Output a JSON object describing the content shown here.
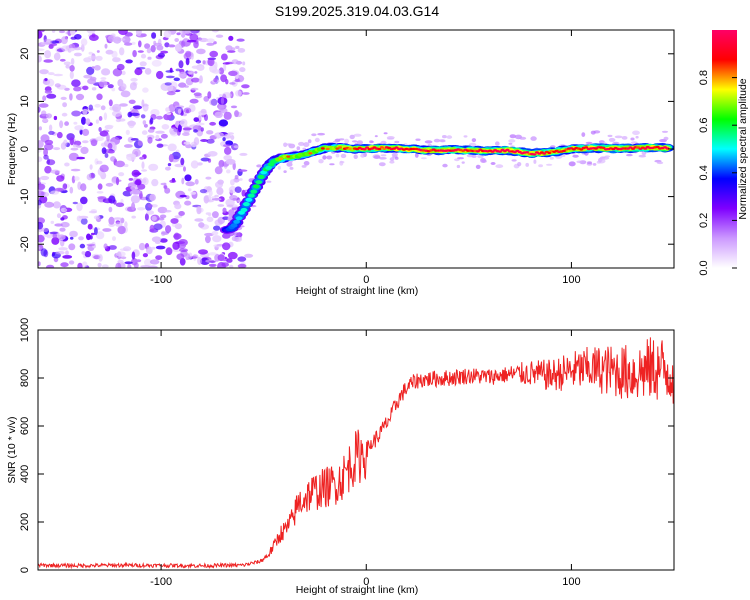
{
  "title": "S199.2025.319.04.03.G14",
  "chart_data": [
    {
      "type": "heatmap",
      "xlabel": "Height of straight line (km)",
      "ylabel": "Frequency (Hz)",
      "xlim": [
        -160,
        150
      ],
      "ylim": [
        -25,
        25
      ],
      "x_ticks": [
        "-100",
        "0",
        "100"
      ],
      "y_ticks": [
        "-20",
        "-10",
        "0",
        "10",
        "20"
      ],
      "noise_region_x": [
        -160,
        -60
      ],
      "ridge": {
        "x": [
          -68,
          -65,
          -60,
          -55,
          -50,
          -45,
          -40,
          -35,
          -30,
          -25,
          -20,
          -15,
          -10,
          -5,
          0,
          10,
          20,
          30,
          40,
          50,
          60,
          70,
          80,
          90,
          100,
          110,
          120,
          130,
          140,
          148
        ],
        "freq": [
          -17,
          -16.5,
          -13,
          -9,
          -5,
          -2.5,
          -1.8,
          -1.6,
          -1.2,
          -0.4,
          0.2,
          0.3,
          0.2,
          0.0,
          0.1,
          0.2,
          0.0,
          -0.3,
          -0.2,
          -0.3,
          -0.4,
          -0.3,
          -1.0,
          -0.7,
          0.0,
          0.2,
          0.1,
          0.2,
          0.3,
          0.2
        ],
        "amplitude": [
          0.35,
          0.45,
          0.5,
          0.55,
          0.55,
          0.6,
          0.8,
          0.75,
          0.7,
          0.72,
          0.8,
          0.78,
          0.85,
          0.82,
          0.9,
          0.88,
          0.92,
          0.9,
          0.88,
          0.9,
          0.92,
          0.95,
          0.9,
          0.88,
          0.85,
          0.9,
          0.92,
          0.88,
          0.9,
          0.95
        ]
      },
      "colorbar": {
        "label": "Normalized spectral amplitude",
        "range": [
          0.0,
          1.0
        ],
        "ticks": [
          "0.0",
          "0.2",
          "0.4",
          "0.6",
          "0.8"
        ],
        "colors": [
          "#ffffff",
          "#cc99ff",
          "#7f00ff",
          "#0000ff",
          "#00ffff",
          "#00ff00",
          "#ffff00",
          "#ff0000",
          "#ff0066"
        ]
      }
    },
    {
      "type": "line",
      "xlabel": "Height of straight line (km)",
      "ylabel": "SNR (10 * v/v)",
      "xlim": [
        -160,
        150
      ],
      "ylim": [
        0,
        1000
      ],
      "x_ticks": [
        "-100",
        "0",
        "100"
      ],
      "y_ticks": [
        "0",
        "200",
        "400",
        "600",
        "800",
        "1000"
      ],
      "series": [
        {
          "name": "SNR",
          "color": "#ee2222",
          "x": [
            -160,
            -140,
            -120,
            -100,
            -80,
            -60,
            -52,
            -48,
            -45,
            -42,
            -39,
            -36,
            -33,
            -30,
            -27,
            -24,
            -21,
            -18,
            -15,
            -12,
            -9,
            -6,
            -3,
            0,
            3,
            6,
            9,
            12,
            15,
            18,
            21,
            25,
            30,
            40,
            50,
            60,
            70,
            80,
            90,
            100,
            110,
            120,
            130,
            140,
            150
          ],
          "y": [
            20,
            18,
            20,
            19,
            18,
            20,
            35,
            60,
            100,
            150,
            170,
            210,
            280,
            300,
            320,
            330,
            340,
            350,
            360,
            380,
            420,
            460,
            480,
            500,
            530,
            560,
            600,
            640,
            700,
            740,
            770,
            790,
            795,
            800,
            810,
            805,
            815,
            820,
            810,
            830,
            840,
            830,
            820,
            840,
            830
          ]
        }
      ]
    }
  ]
}
